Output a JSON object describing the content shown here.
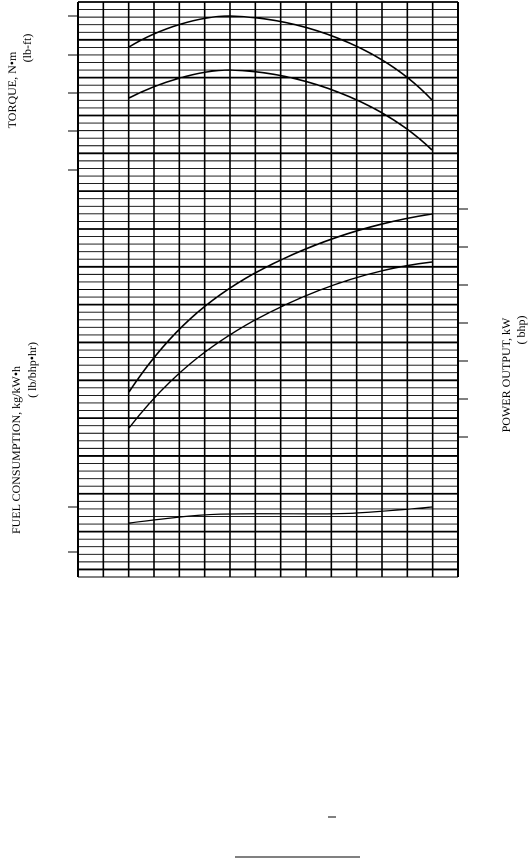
{
  "axes": {
    "torque": "TORQUE, N•m",
    "torque_unit": "(lb-ft)",
    "fuel": "FUEL CONSUMPTION, kg/kW•h",
    "fuel_unit": "( lb/bhp•hr)",
    "power": "POWER OUTPUT, kW",
    "power_unit": "( bhp)"
  }
}
